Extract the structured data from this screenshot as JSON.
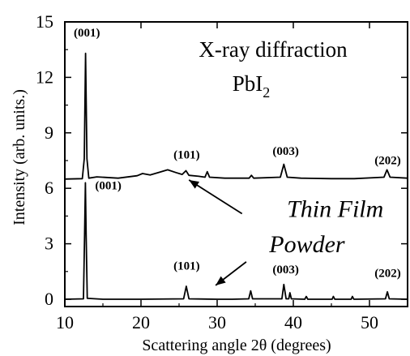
{
  "chart_data": {
    "type": "line",
    "title_line1": "X-ray diffraction",
    "title_line2_base": "PbI",
    "title_line2_sub": "2",
    "xlabel": "Scattering angle 2θ (degrees)",
    "ylabel": "Intensity (arb. units.)",
    "xlim": [
      10,
      55
    ],
    "ylim": [
      -0.2,
      15
    ],
    "xticks": [
      10,
      20,
      30,
      40,
      50
    ],
    "yticks": [
      0,
      3,
      6,
      9,
      12,
      15
    ],
    "grid": false,
    "legend": "none",
    "series": [
      {
        "name": "Thin Film",
        "baseline": 6.5,
        "points": [
          [
            10,
            6.5
          ],
          [
            12.3,
            6.52
          ],
          [
            12.55,
            7.6
          ],
          [
            12.72,
            13.3
          ],
          [
            12.9,
            7.6
          ],
          [
            13.15,
            6.55
          ],
          [
            14.2,
            6.62
          ],
          [
            17,
            6.55
          ],
          [
            19.5,
            6.68
          ],
          [
            20.2,
            6.8
          ],
          [
            21.2,
            6.72
          ],
          [
            22.3,
            6.85
          ],
          [
            23.5,
            7.0
          ],
          [
            24.6,
            6.85
          ],
          [
            25.4,
            6.75
          ],
          [
            25.9,
            6.95
          ],
          [
            26.3,
            6.7
          ],
          [
            27.6,
            6.65
          ],
          [
            28.4,
            6.6
          ],
          [
            28.7,
            6.9
          ],
          [
            29.0,
            6.6
          ],
          [
            31,
            6.55
          ],
          [
            33,
            6.55
          ],
          [
            34.2,
            6.55
          ],
          [
            34.5,
            6.7
          ],
          [
            34.8,
            6.55
          ],
          [
            38.3,
            6.6
          ],
          [
            38.75,
            7.3
          ],
          [
            39.2,
            6.6
          ],
          [
            41,
            6.55
          ],
          [
            45,
            6.52
          ],
          [
            48,
            6.52
          ],
          [
            51.9,
            6.6
          ],
          [
            52.3,
            7.0
          ],
          [
            52.7,
            6.6
          ],
          [
            55,
            6.55
          ]
        ]
      },
      {
        "name": "Powder",
        "baseline": 0.0,
        "points": [
          [
            10,
            0.0
          ],
          [
            12.45,
            0.02
          ],
          [
            12.6,
            3.5
          ],
          [
            12.7,
            6.3
          ],
          [
            12.8,
            3.5
          ],
          [
            12.95,
            0.05
          ],
          [
            15,
            0.0
          ],
          [
            20,
            0.0
          ],
          [
            25.6,
            0.02
          ],
          [
            25.95,
            0.7
          ],
          [
            26.3,
            0.02
          ],
          [
            30,
            0.0
          ],
          [
            32,
            0.0
          ],
          [
            34.15,
            0.02
          ],
          [
            34.4,
            0.45
          ],
          [
            34.65,
            0.02
          ],
          [
            38.5,
            0.02
          ],
          [
            38.75,
            0.8
          ],
          [
            39.05,
            0.02
          ],
          [
            39.4,
            0.02
          ],
          [
            39.55,
            0.35
          ],
          [
            39.75,
            0.02
          ],
          [
            41.5,
            0.0
          ],
          [
            41.7,
            0.15
          ],
          [
            41.9,
            0.0
          ],
          [
            45.1,
            0.0
          ],
          [
            45.25,
            0.15
          ],
          [
            45.45,
            0.0
          ],
          [
            47.6,
            0.0
          ],
          [
            47.75,
            0.15
          ],
          [
            47.95,
            0.0
          ],
          [
            52.1,
            0.02
          ],
          [
            52.35,
            0.4
          ],
          [
            52.6,
            0.02
          ],
          [
            55,
            0.0
          ]
        ]
      }
    ],
    "peak_labels": [
      {
        "text": "(001)",
        "x": 12.9,
        "y": 14.2
      },
      {
        "text": "(101)",
        "x": 26.0,
        "y": 7.6
      },
      {
        "text": "(003)",
        "x": 39.0,
        "y": 7.8
      },
      {
        "text": "(202)",
        "x": 52.4,
        "y": 7.3
      },
      {
        "text": "(001)",
        "x": 15.7,
        "y": 5.95
      },
      {
        "text": "(101)",
        "x": 26.0,
        "y": 1.6
      },
      {
        "text": "(003)",
        "x": 39.0,
        "y": 1.4
      },
      {
        "text": "(202)",
        "x": 52.4,
        "y": 1.2
      }
    ],
    "annotations": [
      {
        "text": "Thin Film",
        "x": 45.5,
        "y": 4.45,
        "arrow_to": [
          26.3,
          6.45
        ]
      },
      {
        "text": "Powder",
        "x": 41.8,
        "y": 2.55,
        "arrow_to": [
          29.8,
          0.75
        ]
      }
    ]
  }
}
